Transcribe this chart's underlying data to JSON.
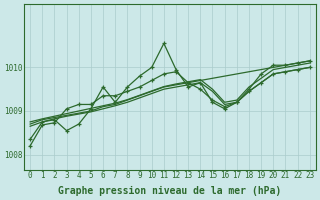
{
  "bg_color": "#cce8e8",
  "line_color": "#2d6a2d",
  "grid_color": "#aacccc",
  "xlabel": "Graphe pression niveau de la mer (hPa)",
  "xlabel_fontsize": 7,
  "tick_fontsize": 5.5,
  "ylim": [
    1007.65,
    1011.45
  ],
  "xlim": [
    -0.5,
    23.5
  ],
  "yticks": [
    1008,
    1009,
    1010
  ],
  "xticks": [
    0,
    1,
    2,
    3,
    4,
    5,
    6,
    7,
    8,
    9,
    10,
    11,
    12,
    13,
    14,
    15,
    16,
    17,
    18,
    19,
    20,
    21,
    22,
    23
  ],
  "series": [
    {
      "y": [
        1008.35,
        1008.75,
        1008.8,
        1008.55,
        1008.7,
        1009.05,
        1009.55,
        1009.2,
        1009.55,
        1009.8,
        1010.0,
        1010.55,
        1009.95,
        1009.55,
        1009.65,
        1009.2,
        1009.05,
        1009.2,
        1009.5,
        1009.85,
        1010.05,
        1010.05,
        1010.1,
        1010.15
      ],
      "marker": true
    },
    {
      "y": [
        1008.7,
        1008.8,
        1008.85,
        1008.9,
        1008.95,
        1009.0,
        1009.1,
        1009.15,
        1009.25,
        1009.35,
        1009.45,
        1009.55,
        1009.6,
        1009.65,
        1009.7,
        1009.75,
        1009.8,
        1009.85,
        1009.9,
        1009.95,
        1010.0,
        1010.05,
        1010.1,
        1010.15
      ],
      "marker": false
    },
    {
      "y": [
        1008.75,
        1008.82,
        1008.88,
        1008.94,
        1009.0,
        1009.06,
        1009.12,
        1009.18,
        1009.26,
        1009.36,
        1009.46,
        1009.56,
        1009.62,
        1009.67,
        1009.72,
        1009.5,
        1009.2,
        1009.25,
        1009.55,
        1009.75,
        1009.95,
        1010.0,
        1010.05,
        1010.1
      ],
      "marker": false
    },
    {
      "y": [
        1008.65,
        1008.75,
        1008.82,
        1008.88,
        1008.93,
        1008.98,
        1009.05,
        1009.12,
        1009.2,
        1009.3,
        1009.4,
        1009.5,
        1009.55,
        1009.6,
        1009.65,
        1009.45,
        1009.15,
        1009.2,
        1009.45,
        1009.65,
        1009.85,
        1009.9,
        1009.95,
        1010.0
      ],
      "marker": false
    },
    {
      "y": [
        1008.2,
        1008.68,
        1008.73,
        1009.05,
        1009.15,
        1009.15,
        1009.35,
        1009.35,
        1009.45,
        1009.55,
        1009.7,
        1009.85,
        1009.9,
        1009.65,
        1009.5,
        1009.25,
        1009.1,
        1009.2,
        1009.45,
        1009.65,
        1009.85,
        1009.9,
        1009.95,
        1010.0
      ],
      "marker": true
    }
  ]
}
